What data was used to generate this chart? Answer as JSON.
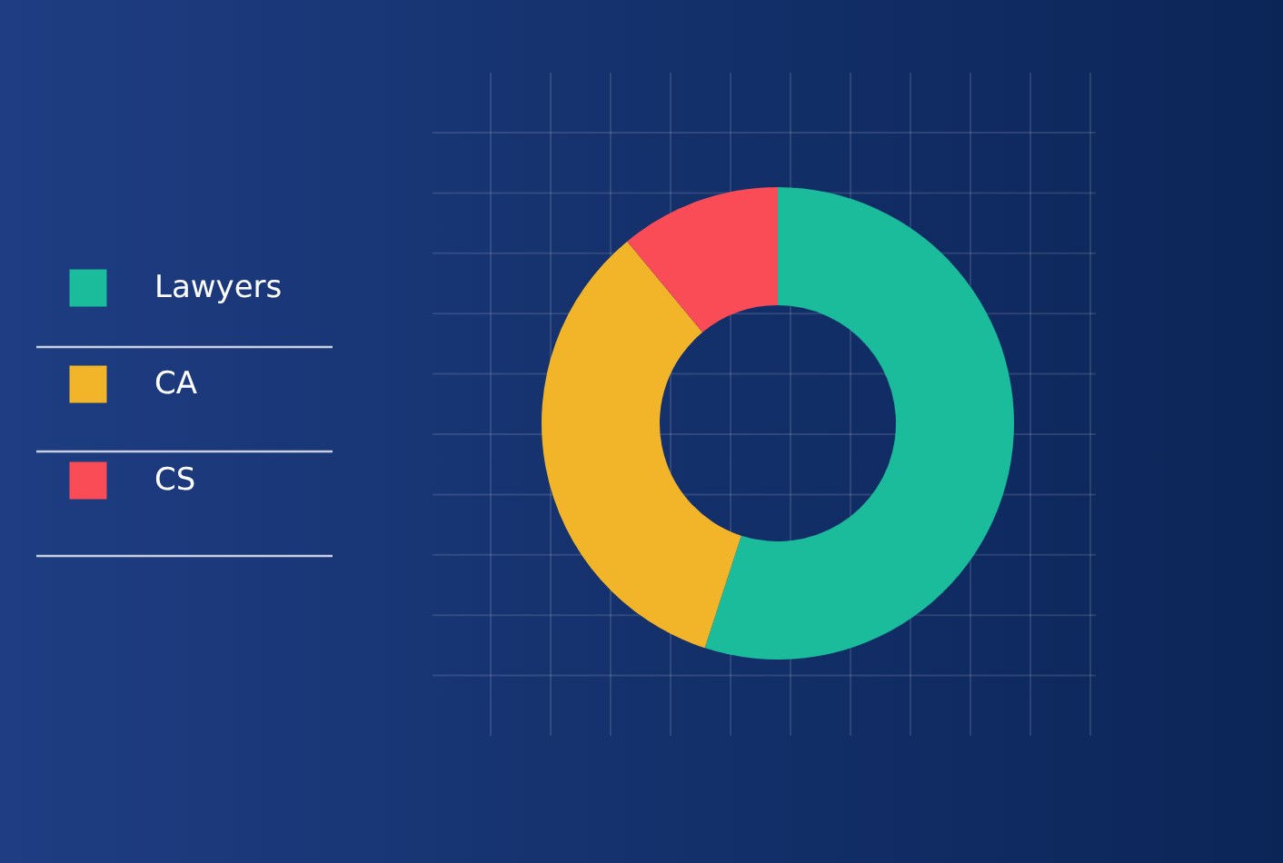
{
  "chart_data": {
    "type": "donut",
    "categories": [
      "Lawyers",
      "CA",
      "CS"
    ],
    "values": [
      55,
      34,
      11
    ],
    "colors": [
      "#1abc9c",
      "#f2b52a",
      "#f94c57"
    ],
    "legend": "left"
  }
}
